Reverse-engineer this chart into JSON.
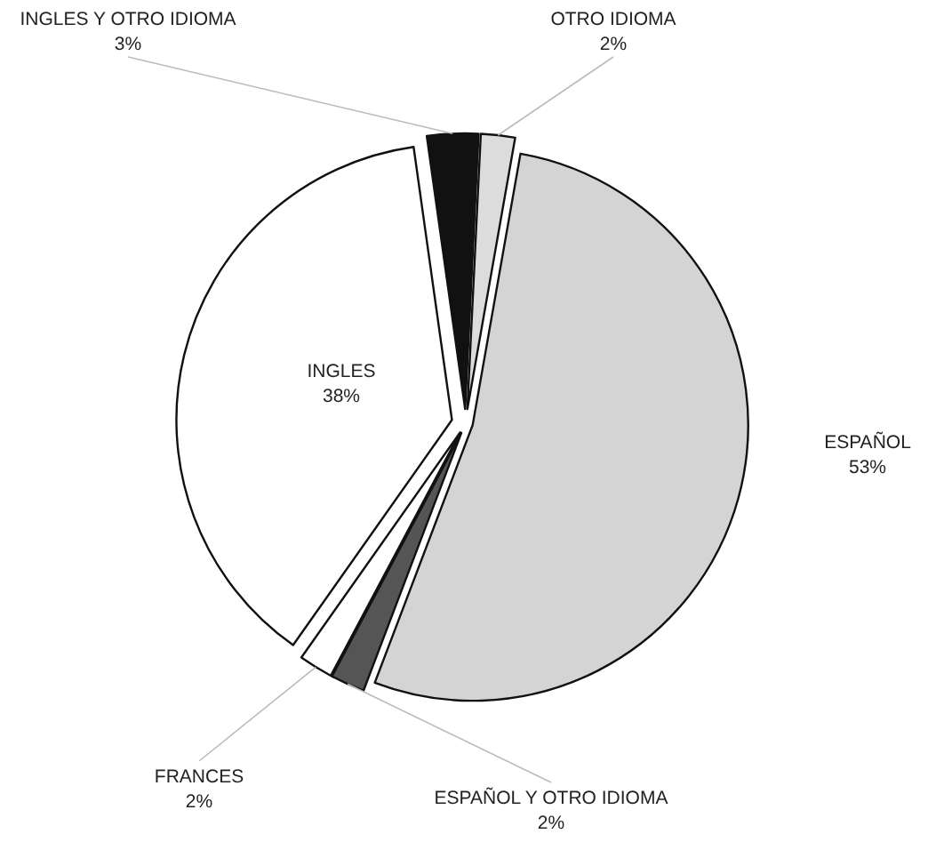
{
  "chart_data": {
    "type": "pie",
    "categories": [
      "ESPAÑOL",
      "ESPAÑOL Y OTRO IDIOMA",
      "FRANCES",
      "INGLES",
      "INGLES Y OTRO IDIOMA",
      "OTRO IDIOMA"
    ],
    "values": [
      53,
      2,
      2,
      38,
      3,
      2
    ],
    "value_labels": [
      "53%",
      "2%",
      "2%",
      "38%",
      "3%",
      "2%"
    ],
    "colors": [
      "#d4d4d4",
      "#555555",
      "#ffffff",
      "#ffffff",
      "#111111",
      "#dcdcdc"
    ]
  }
}
